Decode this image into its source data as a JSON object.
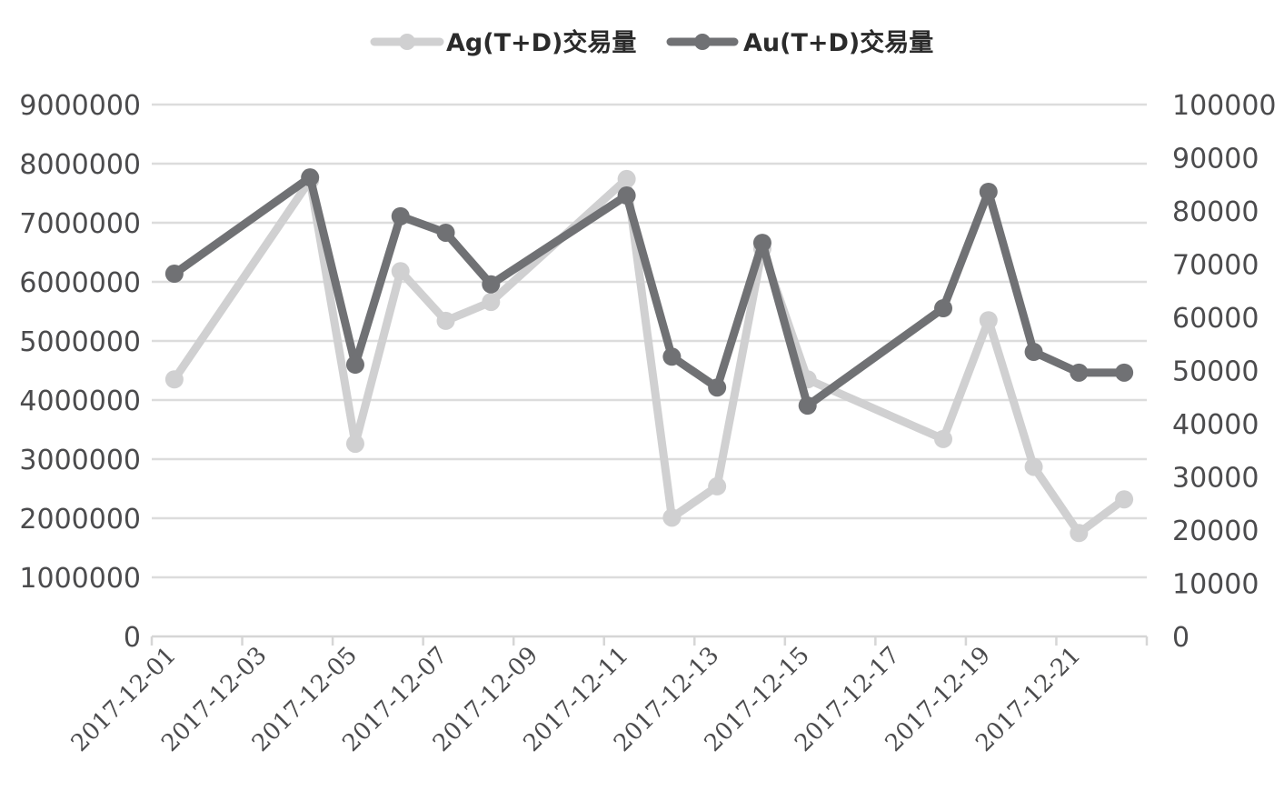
{
  "chart_data": {
    "type": "line",
    "title": "",
    "legend": {
      "position": "top",
      "entries": [
        "Ag(T+D)交易量",
        "Au(T+D)交易量"
      ]
    },
    "x": [
      "2017-12-01",
      "2017-12-04",
      "2017-12-05",
      "2017-12-06",
      "2017-12-07",
      "2017-12-08",
      "2017-12-11",
      "2017-12-12",
      "2017-12-13",
      "2017-12-14",
      "2017-12-15",
      "2017-12-18",
      "2017-12-19",
      "2017-12-20",
      "2017-12-21",
      "2017-12-22"
    ],
    "x_tick_labels": [
      "2017-12-01",
      "2017-12-03",
      "2017-12-05",
      "2017-12-07",
      "2017-12-09",
      "2017-12-11",
      "2017-12-13",
      "2017-12-15",
      "2017-12-17",
      "2017-12-19",
      "2017-12-21"
    ],
    "series": [
      {
        "name": "Ag(T+D)交易量",
        "axis": "left",
        "color": "#d0d0d1",
        "values": [
          4350000,
          7720000,
          3260000,
          6180000,
          5340000,
          5660000,
          7740000,
          2010000,
          2540000,
          6560000,
          4350000,
          3340000,
          5350000,
          2870000,
          1750000,
          2320000
        ]
      },
      {
        "name": "Au(T+D)交易量",
        "axis": "right",
        "color": "#707174",
        "values": [
          68200,
          86300,
          51100,
          79000,
          75900,
          66200,
          82900,
          52600,
          46800,
          74000,
          43400,
          61700,
          83600,
          53500,
          49600,
          49600
        ]
      }
    ],
    "y_left": {
      "label": "",
      "ylim": [
        0,
        9000000
      ],
      "ticks": [
        "0",
        "1000000",
        "2000000",
        "3000000",
        "4000000",
        "5000000",
        "6000000",
        "7000000",
        "8000000",
        "9000000"
      ]
    },
    "y_right": {
      "label": "",
      "ylim": [
        0,
        100000
      ],
      "ticks": [
        "0",
        "10000",
        "20000",
        "30000",
        "40000",
        "50000",
        "60000",
        "70000",
        "80000",
        "90000",
        "100000"
      ]
    },
    "grid": true,
    "xlabel": "",
    "ylabel": ""
  }
}
